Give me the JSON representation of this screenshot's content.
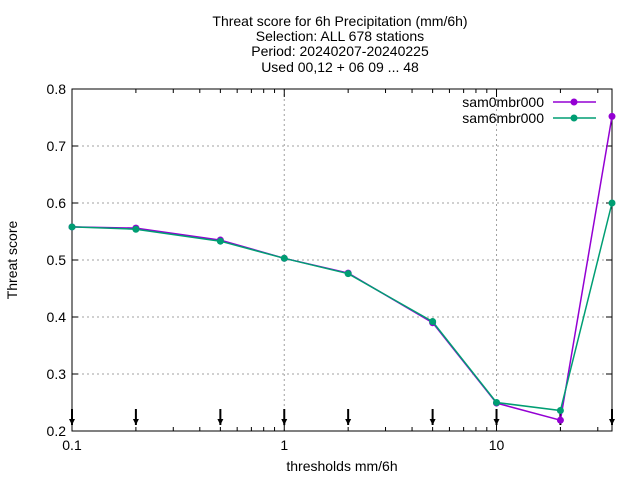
{
  "chart_data": {
    "type": "line",
    "title_lines": [
      "Threat score  for 6h Precipitation (mm/6h)",
      "Selection: ALL    678 stations",
      "Period: 20240207-20240225",
      "Used 00,12 + 06 09 ... 48"
    ],
    "xlabel": "thresholds mm/6h",
    "ylabel": "Threat score",
    "x_scale": "log",
    "xlim": [
      0.1,
      35
    ],
    "ylim": [
      0.2,
      0.8
    ],
    "x_ticks": [
      {
        "value": 0.1,
        "label": "0.1"
      },
      {
        "value": 1,
        "label": "1"
      },
      {
        "value": 10,
        "label": "10"
      }
    ],
    "y_ticks": [
      {
        "value": 0.2,
        "label": "0.2"
      },
      {
        "value": 0.3,
        "label": "0.3"
      },
      {
        "value": 0.4,
        "label": "0.4"
      },
      {
        "value": 0.5,
        "label": "0.5"
      },
      {
        "value": 0.6,
        "label": "0.6"
      },
      {
        "value": 0.7,
        "label": "0.7"
      },
      {
        "value": 0.8,
        "label": "0.8"
      }
    ],
    "grid": true,
    "legend_position": "top-right",
    "x": [
      0.1,
      0.2,
      0.5,
      1,
      2,
      5,
      10,
      20,
      35
    ],
    "series": [
      {
        "name": "sam0mbr000",
        "color": "#9400d3",
        "values": [
          0.558,
          0.556,
          0.535,
          0.503,
          0.477,
          0.39,
          0.249,
          0.219,
          0.752
        ]
      },
      {
        "name": "sam6mbr000",
        "color": "#009e73",
        "values": [
          0.558,
          0.554,
          0.533,
          0.503,
          0.476,
          0.392,
          0.25,
          0.236,
          0.6
        ]
      }
    ]
  }
}
